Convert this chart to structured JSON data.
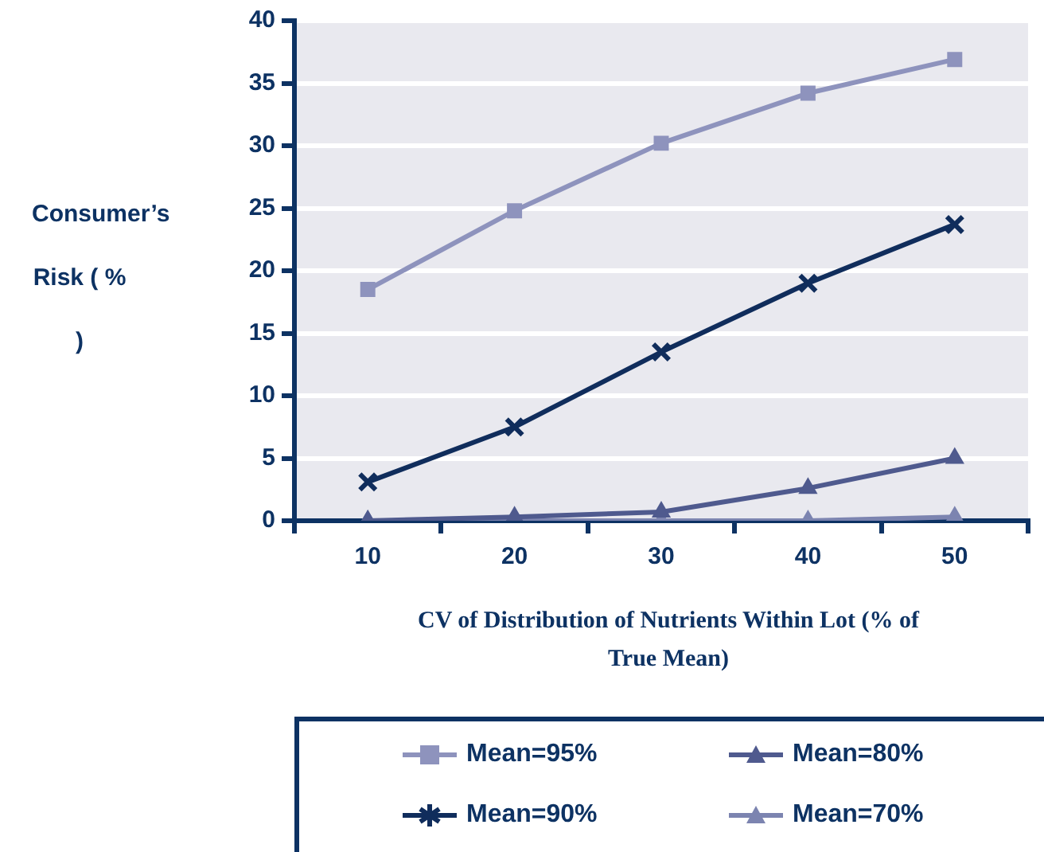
{
  "chart_data": {
    "type": "line",
    "xlabel": "CV of Distribution of Nutrients Within Lot (% of True Mean)",
    "ylabel": "Consumer’s Risk ( % )",
    "categories": [
      "10",
      "20",
      "30",
      "40",
      "50"
    ],
    "series": [
      {
        "name": "Mean=95%",
        "color": "#8e93bd",
        "marker": "square",
        "values": [
          18.5,
          24.8,
          30.2,
          34.2,
          36.9
        ]
      },
      {
        "name": "Mean=90%",
        "color": "#102d5c",
        "marker": "cross",
        "values": [
          3.1,
          7.5,
          13.5,
          19.0,
          23.7
        ]
      },
      {
        "name": "Mean=80%",
        "color": "#4f5a8e",
        "marker": "triangle",
        "values": [
          0,
          0.3,
          0.7,
          2.6,
          5.0
        ]
      },
      {
        "name": "Mean=70%",
        "color": "#7c84b0",
        "marker": "triangle",
        "values": [
          0,
          0,
          0,
          0,
          0.3
        ]
      }
    ],
    "ylim": [
      0,
      40
    ],
    "yticks": [
      0,
      5,
      10,
      15,
      20,
      25,
      30,
      35,
      40
    ],
    "grid": "y",
    "legend": "bottom",
    "line_style": "solid"
  }
}
